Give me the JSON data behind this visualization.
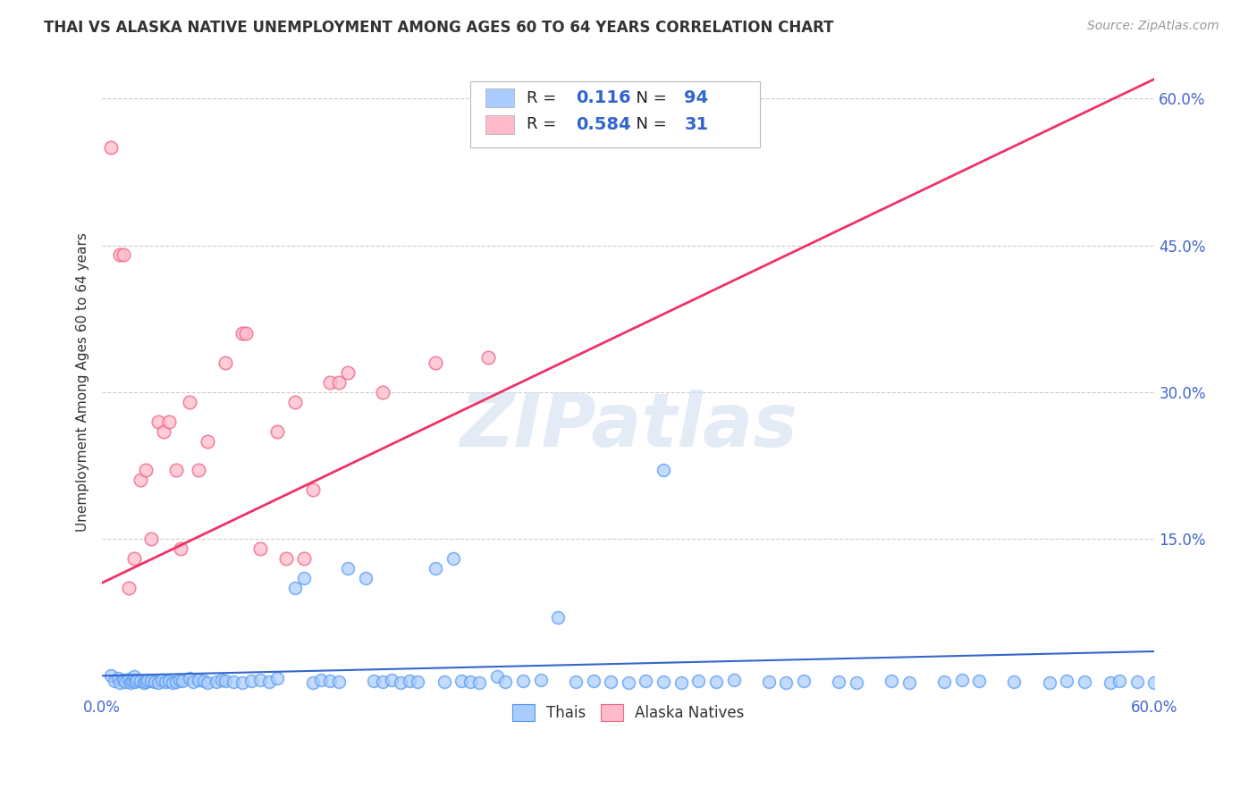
{
  "title": "THAI VS ALASKA NATIVE UNEMPLOYMENT AMONG AGES 60 TO 64 YEARS CORRELATION CHART",
  "source": "Source: ZipAtlas.com",
  "ylabel": "Unemployment Among Ages 60 to 64 years",
  "xlim": [
    0.0,
    0.6
  ],
  "ylim": [
    -0.01,
    0.63
  ],
  "ytick_positions": [
    0.15,
    0.3,
    0.45,
    0.6
  ],
  "ytick_labels": [
    "15.0%",
    "30.0%",
    "45.0%",
    "60.0%"
  ],
  "xtick_positions": [
    0.0,
    0.6
  ],
  "xtick_labels": [
    "0.0%",
    "60.0%"
  ],
  "grid_color": "#cccccc",
  "background_color": "#ffffff",
  "thai_face_color": "#aaccff",
  "thai_edge_color": "#5599ee",
  "alaska_face_color": "#ffbbcc",
  "alaska_edge_color": "#ee6688",
  "thai_line_color": "#3366cc",
  "alaska_line_color": "#ee3366",
  "R_thai": 0.116,
  "N_thai": 94,
  "R_alaska": 0.584,
  "N_alaska": 31,
  "watermark": "ZIPatlas",
  "alaska_line_x0": 0.0,
  "alaska_line_y0": 0.105,
  "alaska_line_x1": 0.6,
  "alaska_line_y1": 0.62,
  "thai_line_x0": 0.0,
  "thai_line_y0": 0.01,
  "thai_line_x1": 0.6,
  "thai_line_y1": 0.035,
  "alaska_x": [
    0.005,
    0.01,
    0.012,
    0.015,
    0.018,
    0.022,
    0.025,
    0.028,
    0.032,
    0.035,
    0.038,
    0.042,
    0.045,
    0.05,
    0.055,
    0.06,
    0.07,
    0.08,
    0.082,
    0.09,
    0.1,
    0.105,
    0.11,
    0.115,
    0.12,
    0.13,
    0.135,
    0.14,
    0.16,
    0.19,
    0.22
  ],
  "alaska_y": [
    0.55,
    0.44,
    0.44,
    0.1,
    0.13,
    0.21,
    0.22,
    0.15,
    0.27,
    0.26,
    0.27,
    0.22,
    0.14,
    0.29,
    0.22,
    0.25,
    0.33,
    0.36,
    0.36,
    0.14,
    0.26,
    0.13,
    0.29,
    0.13,
    0.2,
    0.31,
    0.31,
    0.32,
    0.3,
    0.33,
    0.335
  ],
  "thai_x": [
    0.005,
    0.007,
    0.009,
    0.01,
    0.012,
    0.013,
    0.015,
    0.016,
    0.017,
    0.018,
    0.019,
    0.02,
    0.022,
    0.024,
    0.025,
    0.026,
    0.028,
    0.03,
    0.032,
    0.034,
    0.036,
    0.038,
    0.04,
    0.042,
    0.044,
    0.046,
    0.05,
    0.052,
    0.055,
    0.058,
    0.06,
    0.065,
    0.068,
    0.07,
    0.075,
    0.08,
    0.085,
    0.09,
    0.095,
    0.1,
    0.11,
    0.115,
    0.12,
    0.125,
    0.13,
    0.135,
    0.14,
    0.15,
    0.155,
    0.16,
    0.165,
    0.17,
    0.175,
    0.18,
    0.19,
    0.195,
    0.2,
    0.205,
    0.21,
    0.215,
    0.225,
    0.23,
    0.24,
    0.25,
    0.26,
    0.27,
    0.28,
    0.29,
    0.3,
    0.31,
    0.32,
    0.33,
    0.34,
    0.35,
    0.36,
    0.38,
    0.39,
    0.4,
    0.42,
    0.43,
    0.45,
    0.46,
    0.48,
    0.49,
    0.5,
    0.52,
    0.54,
    0.55,
    0.56,
    0.575,
    0.58,
    0.59,
    0.6,
    0.32
  ],
  "thai_y": [
    0.01,
    0.005,
    0.008,
    0.003,
    0.006,
    0.004,
    0.007,
    0.003,
    0.005,
    0.009,
    0.004,
    0.006,
    0.005,
    0.003,
    0.004,
    0.006,
    0.005,
    0.004,
    0.003,
    0.006,
    0.004,
    0.005,
    0.003,
    0.004,
    0.006,
    0.005,
    0.008,
    0.004,
    0.006,
    0.005,
    0.003,
    0.004,
    0.006,
    0.005,
    0.004,
    0.003,
    0.005,
    0.006,
    0.004,
    0.008,
    0.1,
    0.11,
    0.003,
    0.006,
    0.005,
    0.004,
    0.12,
    0.11,
    0.005,
    0.004,
    0.006,
    0.003,
    0.005,
    0.004,
    0.12,
    0.004,
    0.13,
    0.005,
    0.004,
    0.003,
    0.009,
    0.004,
    0.005,
    0.006,
    0.07,
    0.004,
    0.005,
    0.004,
    0.003,
    0.005,
    0.004,
    0.003,
    0.005,
    0.004,
    0.006,
    0.004,
    0.003,
    0.005,
    0.004,
    0.003,
    0.005,
    0.003,
    0.004,
    0.006,
    0.005,
    0.004,
    0.003,
    0.005,
    0.004,
    0.003,
    0.005,
    0.004,
    0.003,
    0.22
  ]
}
